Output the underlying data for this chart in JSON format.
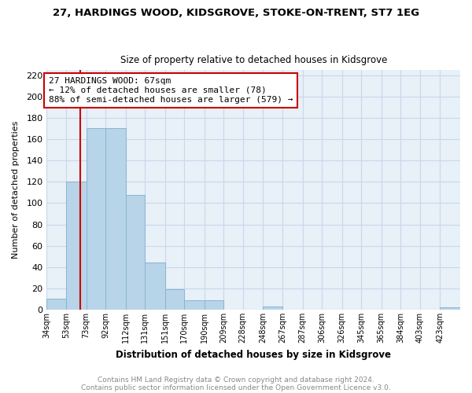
{
  "title": "27, HARDINGS WOOD, KIDSGROVE, STOKE-ON-TRENT, ST7 1EG",
  "subtitle": "Size of property relative to detached houses in Kidsgrove",
  "xlabel": "Distribution of detached houses by size in Kidsgrove",
  "ylabel": "Number of detached properties",
  "bar_labels": [
    "34sqm",
    "53sqm",
    "73sqm",
    "92sqm",
    "112sqm",
    "131sqm",
    "151sqm",
    "170sqm",
    "190sqm",
    "209sqm",
    "228sqm",
    "248sqm",
    "267sqm",
    "287sqm",
    "306sqm",
    "326sqm",
    "345sqm",
    "365sqm",
    "384sqm",
    "403sqm",
    "423sqm"
  ],
  "bar_values": [
    10,
    120,
    170,
    170,
    108,
    44,
    19,
    9,
    9,
    0,
    0,
    3,
    0,
    0,
    0,
    0,
    0,
    0,
    0,
    0,
    2
  ],
  "bar_color": "#b8d4e8",
  "bar_edge_color": "#8ab4d0",
  "property_line_x": 67,
  "property_line_color": "#cc0000",
  "annotation_text": "27 HARDINGS WOOD: 67sqm\n← 12% of detached houses are smaller (78)\n88% of semi-detached houses are larger (579) →",
  "annotation_box_facecolor": "#ffffff",
  "annotation_box_edge": "#cc0000",
  "ylim": [
    0,
    225
  ],
  "yticks": [
    0,
    20,
    40,
    60,
    80,
    100,
    120,
    140,
    160,
    180,
    200,
    220
  ],
  "grid_color": "#c8d8ec",
  "plot_bg_color": "#e8f0f8",
  "fig_bg_color": "#ffffff",
  "footer_line1": "Contains HM Land Registry data © Crown copyright and database right 2024.",
  "footer_line2": "Contains public sector information licensed under the Open Government Licence v3.0.",
  "footer_color": "#888888"
}
